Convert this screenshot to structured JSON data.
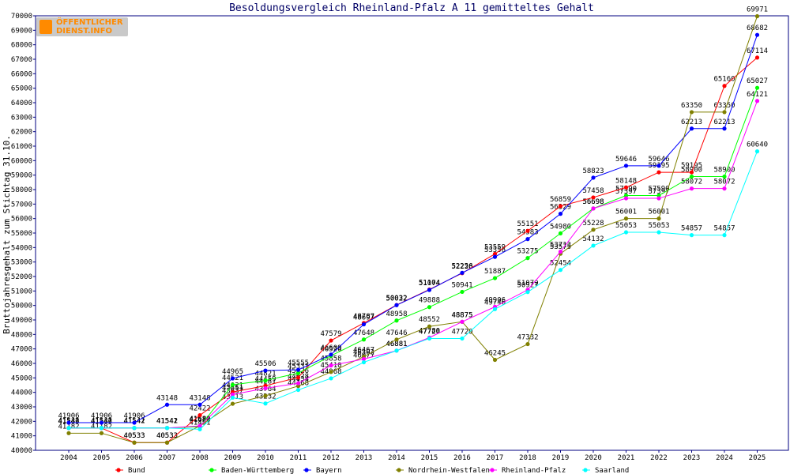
{
  "logo": {
    "line1": "ÖFFENTLICHER",
    "line2": "DIENST.INFO"
  },
  "chart_data": {
    "type": "line",
    "title": "Besoldungsvergleich Rheinland-Pfalz A 11 gemitteltes Gehalt",
    "ylabel": "Bruttojahresgehalt zum Stichtag 31.10.",
    "xlabel": "",
    "categories": [
      "2004",
      "2005",
      "2006",
      "2007",
      "2008",
      "2009",
      "2010",
      "2011",
      "2012",
      "2013",
      "2014",
      "2015",
      "2016",
      "2017",
      "2018",
      "2019",
      "2020",
      "2021",
      "2022",
      "2023",
      "2024",
      "2025"
    ],
    "ylim": [
      40000,
      70000
    ],
    "ytick_step": 1000,
    "grid": false,
    "legend_position": "bottom",
    "series": [
      {
        "name": "Bund",
        "color": "#ff0000",
        "values": [
          41536,
          41536,
          40533,
          40533,
          42422,
          44021,
          44459,
          45026,
          47579,
          48787,
          50032,
          51104,
          52228,
          53559,
          55151,
          56859,
          57458,
          58148,
          59195,
          59195,
          65160,
          67114
        ]
      },
      {
        "name": "Baden-Württemberg",
        "color": "#00ff00",
        "values": [
          41541,
          41541,
          41541,
          41541,
          41630,
          44521,
          44821,
          45331,
          46526,
          47648,
          48958,
          49888,
          50941,
          51887,
          53275,
          54980,
          56698,
          57590,
          57590,
          58900,
          58900,
          65027
        ]
      },
      {
        "name": "Bayern",
        "color": "#0000ff",
        "values": [
          41906,
          41906,
          41906,
          43148,
          43148,
          44965,
          45506,
          45555,
          46609,
          48697,
          50022,
          51074,
          52256,
          53356,
          54583,
          56329,
          58823,
          59646,
          59646,
          62213,
          62213,
          68682
        ]
      },
      {
        "name": "Nordrhein-Westfalen",
        "color": "#808000",
        "values": [
          41182,
          41182,
          40533,
          40533,
          41688,
          43213,
          43764,
          44434,
          45410,
          46467,
          47646,
          48552,
          48875,
          46245,
          47332,
          53575,
          55228,
          56001,
          56001,
          63350,
          63350,
          69971
        ]
      },
      {
        "name": "Rheinland-Pfalz",
        "color": "#ff00ff",
        "values": [
          41542,
          41542,
          41542,
          41542,
          41682,
          43851,
          44281,
          44628,
          45858,
          46302,
          46881,
          47780,
          48875,
          49906,
          51079,
          53713,
          56698,
          57397,
          57397,
          58072,
          58072,
          64121
        ]
      },
      {
        "name": "Saarland",
        "color": "#00ffff",
        "values": [
          41542,
          41542,
          41542,
          41542,
          41451,
          43637,
          43232,
          44168,
          44968,
          46077,
          46881,
          47720,
          47720,
          49746,
          50927,
          52454,
          54132,
          55053,
          55053,
          54857,
          54857,
          60640
        ]
      }
    ]
  }
}
